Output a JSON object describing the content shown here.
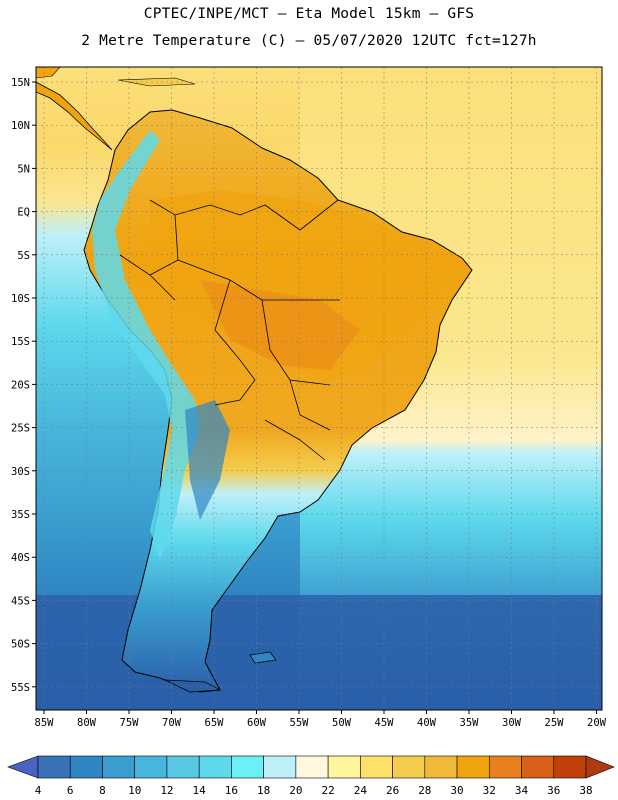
{
  "header": {
    "line1": "CPTEC/INPE/MCT –  Eta Model 15km – GFS",
    "line2": "2 Metre Temperature (C) – 05/07/2020 12UTC fct=127h"
  },
  "axes": {
    "lat_labels": [
      "15N",
      "10N",
      "5N",
      "EQ",
      "5S",
      "10S",
      "15S",
      "20S",
      "25S",
      "30S",
      "35S",
      "40S",
      "45S",
      "50S",
      "55S"
    ],
    "lon_labels": [
      "85W",
      "80W",
      "75W",
      "70W",
      "65W",
      "60W",
      "55W",
      "50W",
      "45W",
      "40W",
      "35W",
      "30W",
      "25W",
      "20W"
    ]
  },
  "colorbar": {
    "ticks": [
      "4",
      "6",
      "8",
      "10",
      "12",
      "14",
      "16",
      "18",
      "20",
      "22",
      "24",
      "26",
      "28",
      "30",
      "32",
      "34",
      "36",
      "38"
    ],
    "colors": [
      "#3a72b8",
      "#2f86c4",
      "#3a9fd0",
      "#48b6dc",
      "#56c8e4",
      "#5ed9ec",
      "#6cf0f6",
      "#bff0fa",
      "#fff8dc",
      "#fff59c",
      "#fce16a",
      "#f5cd4e",
      "#f0b93a",
      "#f0a410",
      "#e88020",
      "#d86018",
      "#c04008"
    ],
    "left_arrow_color": "#4a62c0",
    "right_arrow_color": "#b03a10"
  }
}
